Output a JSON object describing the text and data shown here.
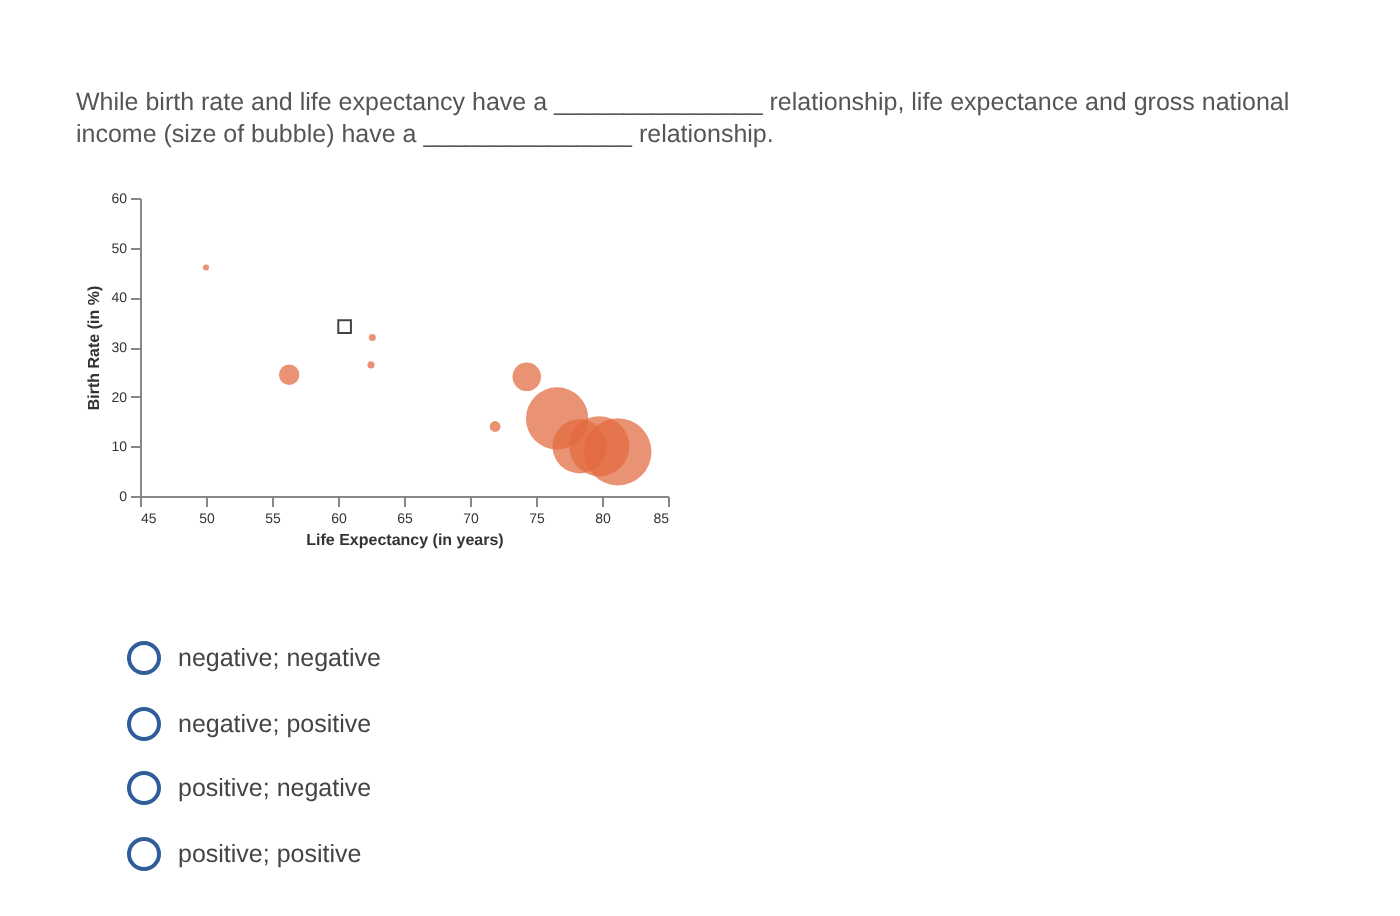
{
  "chart_data": {
    "type": "bubble",
    "title": "While birth rate and life expectancy have a _______________ relationship, life expectance and gross national income (size of bubble) have a _______________ relationship.",
    "xlabel": "Life Expectancy (in years)",
    "ylabel": "Birth Rate (in %)",
    "xlim": [
      45,
      85
    ],
    "xticks": [
      45,
      50,
      55,
      60,
      65,
      70,
      75,
      80,
      85
    ],
    "ylim": [
      0,
      60
    ],
    "yticks": [
      0,
      10,
      20,
      30,
      40,
      50,
      60
    ],
    "grid": false,
    "series": [
      {
        "color": "#e2693f",
        "x": [
          50,
          56.3,
          62.6,
          62.5,
          74.3,
          71.9,
          76.6,
          78.3,
          79.8,
          81.2
        ],
        "values": [
          46,
          24.4,
          31.9,
          26.4,
          24,
          14,
          15.6,
          10,
          10,
          8.9
        ],
        "sizes": [
          0.008,
          0.092,
          0.011,
          0.011,
          0.18,
          0.026,
          0.86,
          0.65,
          0.8,
          1
        ]
      },
      {
        "type": "scatter",
        "marker": "square",
        "color": "#444444",
        "x": [
          60.5
        ],
        "values": [
          34.1
        ]
      }
    ],
    "annotations": [
      "negative; negative",
      "negative; positive",
      "positive; negative",
      "positive; positive"
    ]
  }
}
